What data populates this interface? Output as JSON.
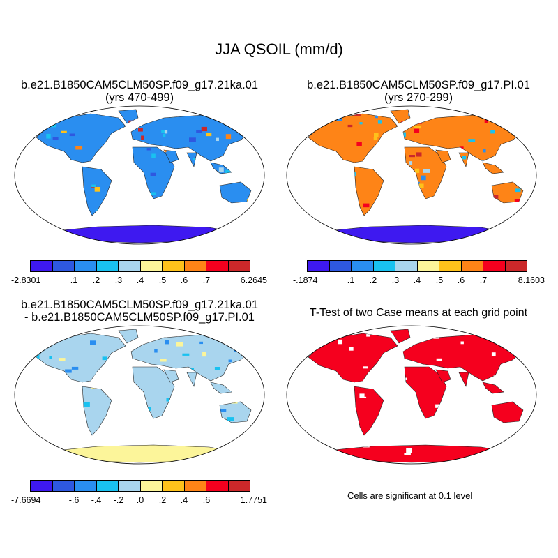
{
  "title": "JJA QSOIL (mm/d)",
  "colors": {
    "scale": [
      "#3e19f0",
      "#2e58e0",
      "#2a8ef0",
      "#19c1f0",
      "#a9d5ee",
      "#fcf59a",
      "#fec21b",
      "#fe8417",
      "#f5001e",
      "#cb282a"
    ],
    "land_pattern_a": [
      "#2a8ef0",
      "#19c1f0",
      "#a9d5ee",
      "#2e58e0",
      "#fec21b",
      "#cb282a"
    ],
    "ttest_red": "#f5001e"
  },
  "panels": [
    {
      "title_line1": "b.e21.B1850CAM5CLM50SP.f09_g17.21ka.01",
      "title_line2": "(yrs 470-499)",
      "colorbar": {
        "min_label": "-2.8301",
        "ticks": [
          ".1",
          ".2",
          ".3",
          ".4",
          ".5",
          ".6",
          ".7"
        ],
        "max_label": "6.2645"
      }
    },
    {
      "title_line1": "b.e21.B1850CAM5CLM50SP.f09_g17.PI.01",
      "title_line2": "(yrs 270-299)",
      "colorbar": {
        "min_label": "-.1874",
        "ticks": [
          ".1",
          ".2",
          ".3",
          ".4",
          ".5",
          ".6",
          ".7"
        ],
        "max_label": "8.1603"
      }
    },
    {
      "title_line1": "b.e21.B1850CAM5CLM50SP.f09_g17.21ka.01",
      "title_line2": "- b.e21.B1850CAM5CLM50SP.f09_g17.PI.01",
      "colorbar": {
        "min_label": "-7.6694",
        "ticks": [
          "-.6",
          "-.4",
          "-.2",
          ".0",
          ".2",
          ".4",
          ".6"
        ],
        "max_label": "1.7751"
      }
    },
    {
      "title_line1": "T-Test of two Case means at each grid point",
      "note": "Cells are significant at 0.1 level"
    }
  ]
}
